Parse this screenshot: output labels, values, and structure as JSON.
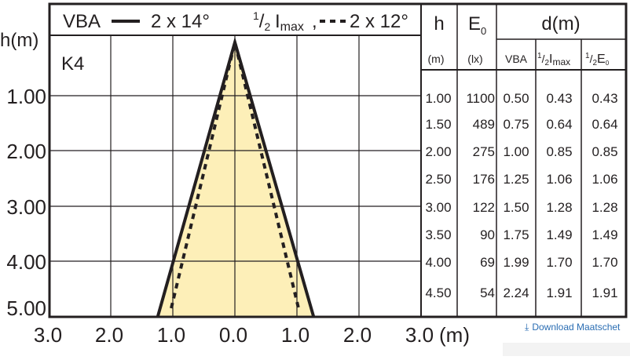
{
  "diagram": {
    "legend": {
      "solid_label": "VBA",
      "solid_value": "2 x 14°",
      "half_sup": "1",
      "half_slash": "/",
      "half_sub": "2",
      "imax_i": "I",
      "imax_sub": "max",
      "dashed_value": "2 x 12°",
      "separator": ","
    },
    "lamp_code": "K4",
    "y_axis": {
      "label": "h(m)",
      "ticks": [
        "1.00",
        "2.00",
        "3.00",
        "4.00",
        "5.00"
      ]
    },
    "x_axis": {
      "ticks": [
        "3.0",
        "2.0",
        "1.0",
        "0.0",
        "1.0",
        "2.0",
        "3.0"
      ],
      "unit": "(m)"
    },
    "colors": {
      "fill": "#fdefb8",
      "line": "#231f20",
      "grid": "#231f20"
    }
  },
  "table": {
    "headers": {
      "h": "h",
      "e0_e": "E",
      "e0_sub": "0",
      "d": "d(m)",
      "h_unit": "(m)",
      "e0_unit": "(lx)",
      "d_vba": "VBA",
      "d_imax_i": "I",
      "d_imax_sub": "max",
      "d_e_e": "E",
      "d_e_sub": "0",
      "half_sup": "1",
      "half_slash": "/",
      "half_sub": "2"
    },
    "rows": [
      {
        "h": "1.00",
        "e0": "1100",
        "vba": "0.50",
        "imax": "0.43",
        "e": "0.43"
      },
      {
        "h": "1.50",
        "e0": "489",
        "vba": "0.75",
        "imax": "0.64",
        "e": "0.64"
      },
      {
        "h": "2.00",
        "e0": "275",
        "vba": "1.00",
        "imax": "0.85",
        "e": "0.85"
      },
      {
        "h": "2.50",
        "e0": "176",
        "vba": "1.25",
        "imax": "1.06",
        "e": "1.06"
      },
      {
        "h": "3.00",
        "e0": "122",
        "vba": "1.50",
        "imax": "1.28",
        "e": "1.28"
      },
      {
        "h": "3.50",
        "e0": "90",
        "vba": "1.75",
        "imax": "1.49",
        "e": "1.49"
      },
      {
        "h": "4.00",
        "e0": "69",
        "vba": "1.99",
        "imax": "1.70",
        "e": "1.70"
      },
      {
        "h": "4.50",
        "e0": "54",
        "vba": "2.24",
        "imax": "1.91",
        "e": "1.91"
      }
    ]
  },
  "download_link": {
    "icon": "download-arrow-icon",
    "label": "Download Maatschet"
  }
}
